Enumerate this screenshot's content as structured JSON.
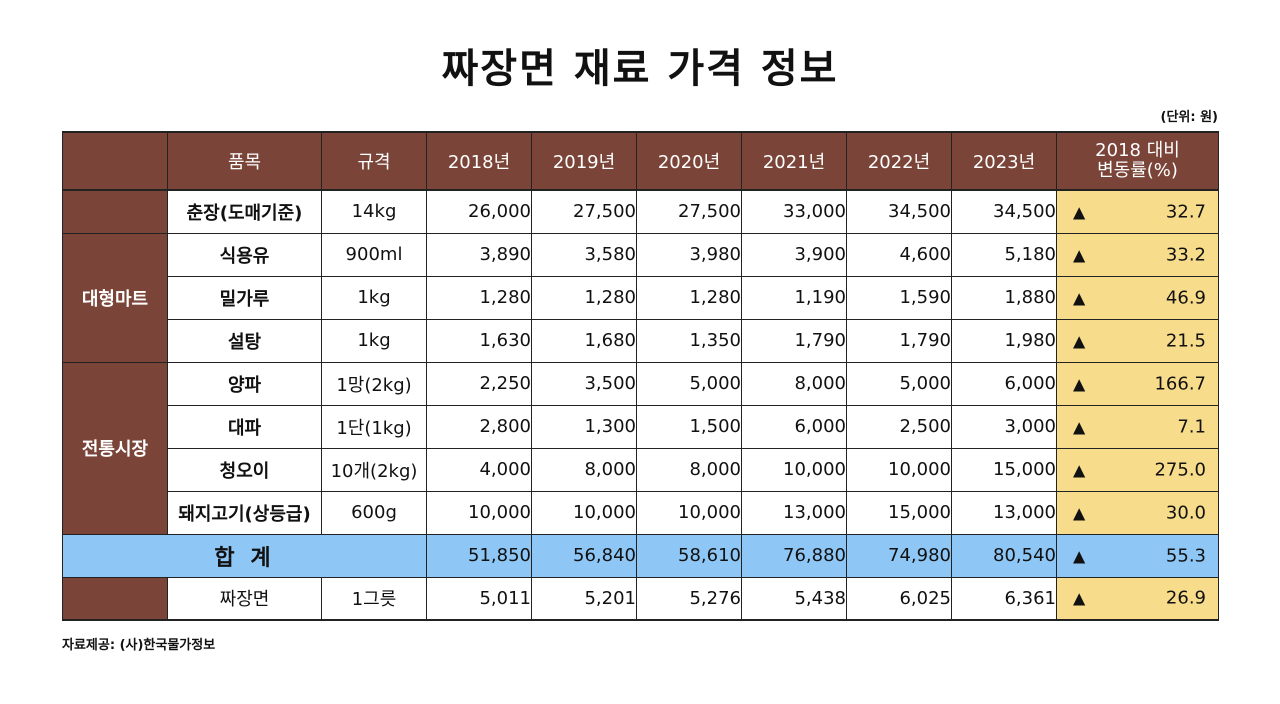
{
  "title": "짜장면 재료 가격 정보",
  "unit": "(단위: 원)",
  "headers": {
    "item": "품목",
    "spec": "규격",
    "years": [
      "2018년",
      "2019년",
      "2020년",
      "2021년",
      "2022년",
      "2023년"
    ],
    "change_line1": "2018 대비",
    "change_line2": "변동률(%)"
  },
  "groups": {
    "mart": "대형마트",
    "market": "전통시장"
  },
  "rows": [
    {
      "item": "춘장(도매기준)",
      "spec": "14kg",
      "values": [
        "26,000",
        "27,500",
        "27,500",
        "33,000",
        "34,500",
        "34,500"
      ],
      "arrow": "▲",
      "change": "32.7"
    },
    {
      "item": "식용유",
      "spec": "900ml",
      "values": [
        "3,890",
        "3,580",
        "3,980",
        "3,900",
        "4,600",
        "5,180"
      ],
      "arrow": "▲",
      "change": "33.2"
    },
    {
      "item": "밀가루",
      "spec": "1kg",
      "values": [
        "1,280",
        "1,280",
        "1,280",
        "1,190",
        "1,590",
        "1,880"
      ],
      "arrow": "▲",
      "change": "46.9"
    },
    {
      "item": "설탕",
      "spec": "1kg",
      "values": [
        "1,630",
        "1,680",
        "1,350",
        "1,790",
        "1,790",
        "1,980"
      ],
      "arrow": "▲",
      "change": "21.5"
    },
    {
      "item": "양파",
      "spec": "1망(2kg)",
      "values": [
        "2,250",
        "3,500",
        "5,000",
        "8,000",
        "5,000",
        "6,000"
      ],
      "arrow": "▲",
      "change": "166.7"
    },
    {
      "item": "대파",
      "spec": "1단(1kg)",
      "values": [
        "2,800",
        "1,300",
        "1,500",
        "6,000",
        "2,500",
        "3,000"
      ],
      "arrow": "▲",
      "change": "7.1"
    },
    {
      "item": "청오이",
      "spec": "10개(2kg)",
      "values": [
        "4,000",
        "8,000",
        "8,000",
        "10,000",
        "10,000",
        "15,000"
      ],
      "arrow": "▲",
      "change": "275.0"
    },
    {
      "item": "돼지고기(상등급)",
      "spec": "600g",
      "values": [
        "10,000",
        "10,000",
        "10,000",
        "13,000",
        "15,000",
        "13,000"
      ],
      "arrow": "▲",
      "change": "30.0"
    }
  ],
  "total": {
    "label": "합 계",
    "values": [
      "51,850",
      "56,840",
      "58,610",
      "76,880",
      "74,980",
      "80,540"
    ],
    "arrow": "▲",
    "change": "55.3"
  },
  "jjajang": {
    "item": "짜장면",
    "spec": "1그릇",
    "values": [
      "5,011",
      "5,201",
      "5,276",
      "5,438",
      "6,025",
      "6,361"
    ],
    "arrow": "▲",
    "change": "26.9"
  },
  "source": "자료제공: (사)한국물가정보"
}
